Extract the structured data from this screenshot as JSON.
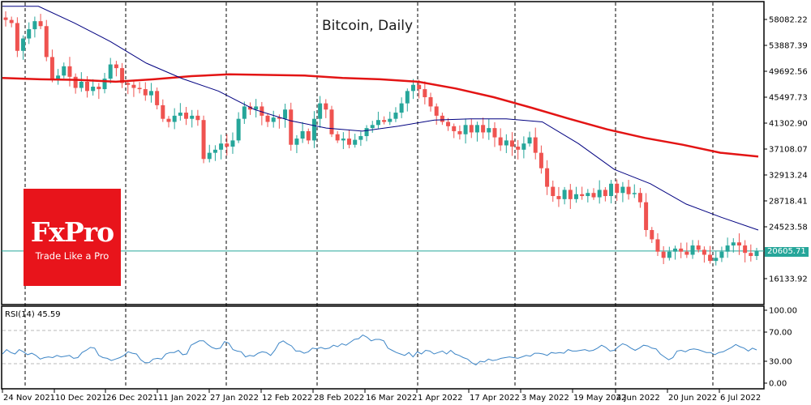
{
  "chart_data": {
    "type": "candlestick",
    "title": "Bitcoin, Daily",
    "instrument": "Bitcoin",
    "timeframe": "Daily",
    "xlabel": "",
    "ylabel": "",
    "ylim": [
      14000,
      60500
    ],
    "y_ticks": [
      58082.22,
      53887.39,
      49692.56,
      45497.73,
      41302.9,
      37108.07,
      32913.24,
      28718.41,
      24523.58,
      16133.92
    ],
    "x_ticks": [
      "24 Nov 2021",
      "10 Dec 2021",
      "26 Dec 2021",
      "11 Jan 2022",
      "27 Jan 2022",
      "12 Feb 2022",
      "28 Feb 2022",
      "16 Mar 2022",
      "1 Apr 2022",
      "17 Apr 2022",
      "3 May 2022",
      "19 May 2022",
      "4 Jun 2022",
      "20 Jun 2022",
      "6 Jul 2022"
    ],
    "current_price": 20605.71,
    "grid": "vertical dashed separators",
    "series": [
      {
        "name": "Price (candles)",
        "type": "candlestick",
        "up_color": "#26a69a",
        "down_color": "#ef5350",
        "close_path_approx": [
          58000,
          57500,
          53000,
          55000,
          56500,
          57800,
          57000,
          52000,
          48500,
          49000,
          50500,
          48800,
          47000,
          48000,
          46500,
          47200,
          46800,
          48500,
          50800,
          50200,
          47800,
          47500,
          47000,
          46800,
          45800,
          46500,
          44200,
          42000,
          41500,
          42500,
          43000,
          42000,
          42500,
          41800,
          35500,
          36500,
          37000,
          38000,
          37500,
          38500,
          42000,
          44000,
          43500,
          44000,
          42500,
          41500,
          42200,
          42000,
          43500,
          37800,
          38800,
          40000,
          38500,
          42000,
          44500,
          43500,
          39500,
          38500,
          38800,
          37800,
          38600,
          39200,
          40500,
          41000,
          41800,
          41500,
          42000,
          43000,
          44500,
          46500,
          47500,
          46800,
          45500,
          44000,
          42500,
          41500,
          40800,
          40000,
          39500,
          41000,
          39800,
          41000,
          39800,
          40500,
          39000,
          37700,
          38500,
          37500,
          37000,
          38000,
          39000,
          36500,
          34000,
          31000,
          29500,
          29000,
          30500,
          29000,
          29800,
          29500,
          30000,
          29300,
          30500,
          29500,
          31500,
          30000,
          31000,
          29800,
          30000,
          28500,
          24000,
          22500,
          20500,
          19500,
          20500,
          21000,
          20500,
          20000,
          21500,
          20800,
          20000,
          19000,
          19500,
          20500,
          21500,
          22000,
          21500,
          20300,
          19800,
          20605.71
        ]
      },
      {
        "name": "MA slow (red)",
        "type": "line",
        "color": "#e31414",
        "values_approx": [
          48600,
          48400,
          48300,
          48000,
          48400,
          48900,
          49200,
          49100,
          49000,
          48600,
          48400,
          48000,
          46900,
          45500,
          43800,
          42000,
          40300,
          38900,
          37800,
          36500,
          35900
        ]
      },
      {
        "name": "MA fast (navy)",
        "type": "line",
        "color": "#000080",
        "values_approx": [
          60200,
          60200,
          57500,
          54500,
          51000,
          48500,
          46500,
          43500,
          41700,
          40500,
          40000,
          40800,
          41800,
          42000,
          42000,
          41500,
          38000,
          33800,
          31500,
          28200,
          26000,
          24000
        ]
      }
    ]
  },
  "rsi_panel": {
    "label": "RSI(14) 45.59",
    "indicator": "RSI",
    "period": 14,
    "value": 45.59,
    "color": "#3d85c6",
    "y_ticks": [
      100.0,
      70.0,
      30.0,
      0.0
    ],
    "levels": [
      70,
      30
    ],
    "values_approx": [
      40,
      46,
      42,
      40,
      46,
      43,
      39,
      41,
      38,
      33,
      35,
      36,
      35,
      38,
      36,
      37,
      38,
      34,
      35,
      42,
      45,
      49,
      48,
      38,
      35,
      34,
      31,
      33,
      35,
      38,
      43,
      41,
      40,
      32,
      28,
      28,
      33,
      34,
      33,
      40,
      42,
      42,
      45,
      39,
      40,
      52,
      55,
      58,
      58,
      53,
      49,
      47,
      48,
      57,
      55,
      46,
      44,
      43,
      36,
      38,
      37,
      41,
      43,
      42,
      38,
      45,
      55,
      58,
      54,
      51,
      44,
      44,
      41,
      43,
      48,
      47,
      49,
      47,
      48,
      52,
      50,
      54,
      52,
      56,
      60,
      61,
      66,
      63,
      58,
      60,
      60,
      58,
      48,
      45,
      42,
      40,
      38,
      42,
      36,
      43,
      40,
      45,
      44,
      40,
      42,
      44,
      40,
      45,
      40,
      38,
      35,
      33,
      28,
      25,
      30,
      29,
      33,
      31,
      32,
      34,
      35,
      36,
      35,
      34,
      36,
      38,
      37,
      41,
      41,
      40,
      38,
      42,
      41,
      42,
      41,
      46,
      44,
      44,
      45,
      46,
      44,
      45,
      48,
      52,
      49,
      44,
      45,
      50,
      54,
      52,
      48,
      45,
      48,
      52,
      51,
      48,
      47,
      40,
      36,
      32,
      35,
      44,
      45,
      43,
      46,
      47,
      46,
      44,
      42,
      42,
      39,
      42,
      43,
      46,
      49,
      53,
      50,
      48,
      44,
      48,
      45.59
    ]
  },
  "price_label": "20605.71",
  "watermark": {
    "brand": "FxPro",
    "tagline": "Trade Like a Pro",
    "color": "#e8141b"
  }
}
